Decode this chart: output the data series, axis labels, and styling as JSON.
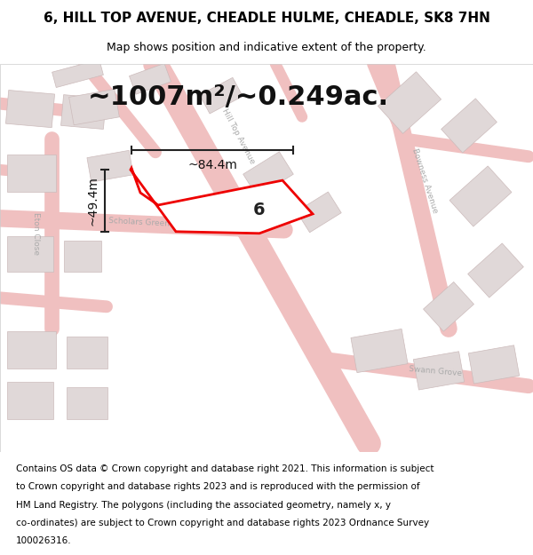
{
  "title": "6, HILL TOP AVENUE, CHEADLE HULME, CHEADLE, SK8 7HN",
  "subtitle": "Map shows position and indicative extent of the property.",
  "area_text": "~1007m²/~0.249ac.",
  "width_text": "~84.4m",
  "height_text": "~49.4m",
  "property_number": "6",
  "footer_lines": [
    "Contains OS data © Crown copyright and database right 2021. This information is subject",
    "to Crown copyright and database rights 2023 and is reproduced with the permission of",
    "HM Land Registry. The polygons (including the associated geometry, namely x, y",
    "co-ordinates) are subject to Crown copyright and database rights 2023 Ordnance Survey",
    "100026316."
  ],
  "bg_color": "#ffffff",
  "map_bg_color": "#f8f4f4",
  "road_color": "#f0c0c0",
  "building_color": "#e0d8d8",
  "building_outline": "#ccbbbb",
  "property_fill": "#ffffff",
  "property_outline": "#ee0000",
  "dim_line_color": "#222222",
  "street_label_color": "#aaaaaa",
  "title_fontsize": 11,
  "subtitle_fontsize": 9,
  "area_fontsize": 22,
  "dim_fontsize": 10,
  "label_fontsize": 14,
  "footer_fontsize": 7.5,
  "street_fontsize": 6.5
}
